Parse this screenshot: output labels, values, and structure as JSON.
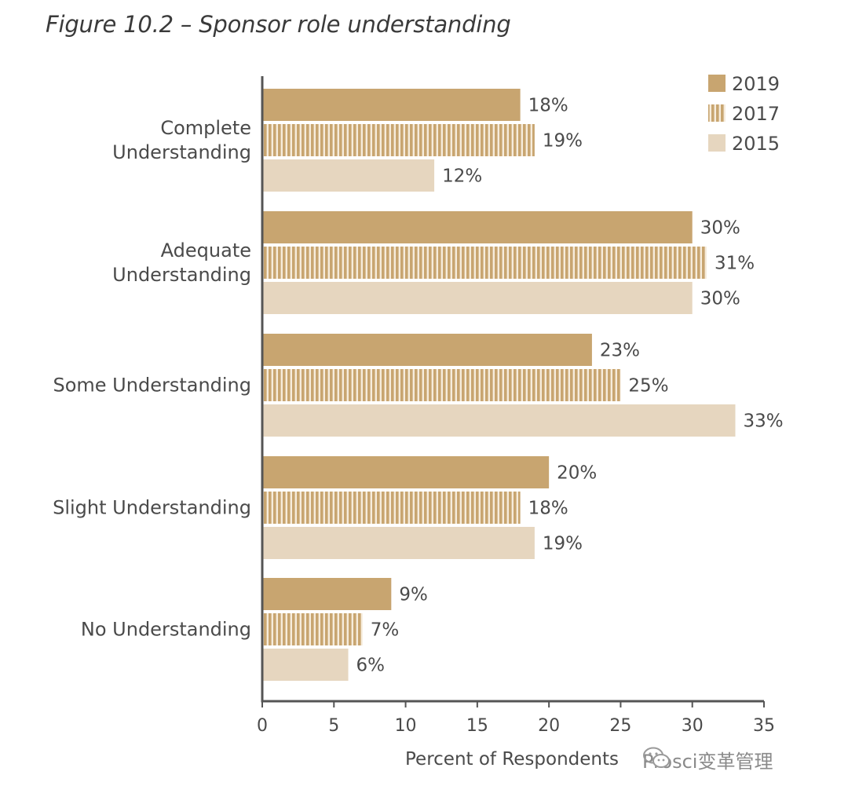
{
  "chart_data": {
    "type": "bar",
    "orientation": "horizontal",
    "title": "Figure 10.2 – Sponsor role understanding",
    "categories": [
      "Complete Understanding",
      "Adequate Understanding",
      "Some Understanding",
      "Slight Understanding",
      "No Understanding"
    ],
    "category_lines": [
      [
        "Complete",
        "Understanding"
      ],
      [
        "Adequate",
        "Understanding"
      ],
      [
        "Some Understanding"
      ],
      [
        "Slight Understanding"
      ],
      [
        "No Understanding"
      ]
    ],
    "series": [
      {
        "name": "2019",
        "values": [
          18,
          30,
          23,
          20,
          9
        ],
        "color": "#c8a570",
        "pattern": "solid"
      },
      {
        "name": "2017",
        "values": [
          19,
          31,
          25,
          18,
          7
        ],
        "color": "#c8a570",
        "pattern": "vertical-stripes"
      },
      {
        "name": "2015",
        "values": [
          12,
          30,
          33,
          19,
          6
        ],
        "color": "#e6d6bf",
        "pattern": "solid"
      }
    ],
    "value_suffix": "%",
    "xlabel": "Percent of Respondents",
    "ylabel": "",
    "xlim": [
      0,
      35
    ],
    "xticks": [
      0,
      5,
      10,
      15,
      20,
      25,
      30,
      35
    ],
    "grid": false,
    "legend": "top-right"
  },
  "watermark": {
    "text": "Prosci变革管理",
    "icon": "wechat-icon"
  }
}
